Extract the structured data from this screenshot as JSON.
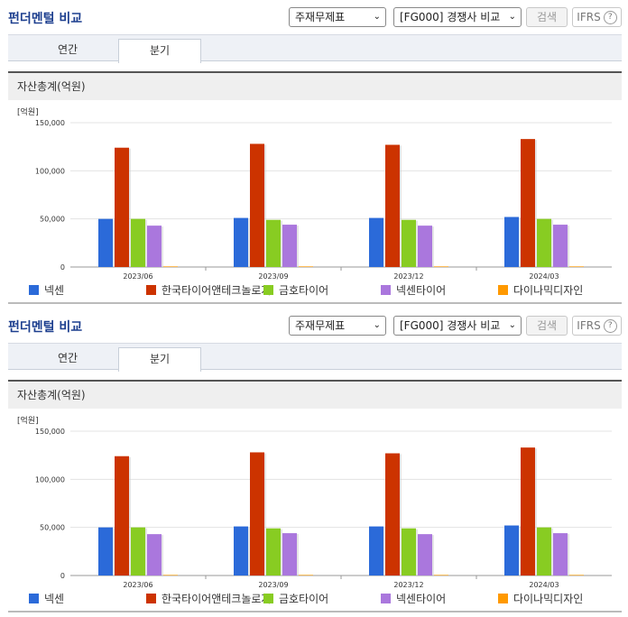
{
  "title": "펀더멘털 비교",
  "select_statement": "주재무제표",
  "select_compare": "[FG000] 경쟁사 비교",
  "search_label": "검색",
  "ifrs_label": "IFRS",
  "help_glyph": "?",
  "chevron_glyph": "⌄",
  "tabs": [
    "연간",
    "분기"
  ],
  "section_title": "자산총계(억원)",
  "unit_label": "[억원]",
  "chart_data": {
    "type": "bar",
    "title": "자산총계(억원)",
    "ylabel": "[억원]",
    "xlabel": "",
    "ylim": [
      0,
      150000
    ],
    "yticks": [
      "150,000",
      "100,000",
      "50,000",
      "0"
    ],
    "ytick_values": [
      150000,
      100000,
      50000,
      0
    ],
    "grid": true,
    "legend_position": "bottom",
    "categories": [
      "2023/06",
      "2023/09",
      "2023/12",
      "2024/03"
    ],
    "series": [
      {
        "name": "넥센",
        "color": "#2b6ad9",
        "values": [
          50000,
          51000,
          51000,
          52000
        ]
      },
      {
        "name": "한국타이어앤테크놀로지",
        "color": "#cc3300",
        "values": [
          124000,
          128000,
          127000,
          133000
        ]
      },
      {
        "name": "금호타이어",
        "color": "#88cc22",
        "values": [
          50000,
          49000,
          49000,
          50000
        ]
      },
      {
        "name": "넥센타이어",
        "color": "#aa77dd",
        "values": [
          43000,
          44000,
          43000,
          44000
        ]
      },
      {
        "name": "다이나믹디자인",
        "color": "#ff9900",
        "values": [
          600,
          600,
          600,
          600
        ]
      }
    ]
  }
}
